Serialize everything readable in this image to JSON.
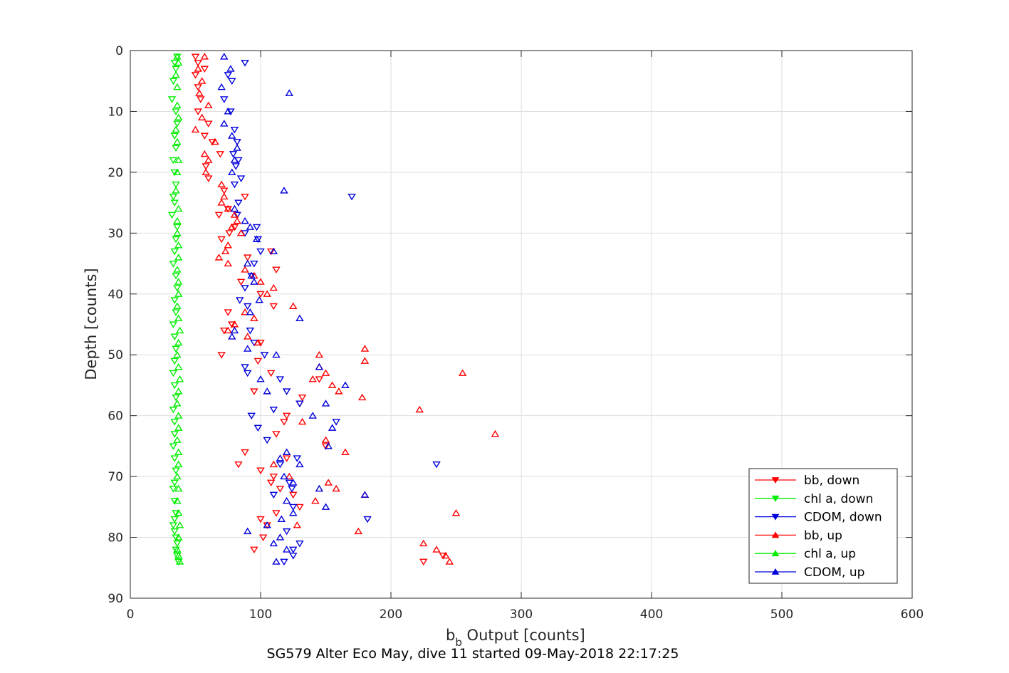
{
  "chart_data": {
    "type": "scatter",
    "caption": "SG579 Alter Eco May, dive 11 started 09-May-2018 22:17:25",
    "xlabel_main": "b",
    "xlabel_sub": "b",
    "xlabel_rest": " Output [counts]",
    "ylabel": "Depth [counts]",
    "xlim": [
      0,
      600
    ],
    "ylim": [
      0,
      90
    ],
    "y_reversed": true,
    "grid": true,
    "legend_placement": "bottom-right",
    "x_ticks": [
      "0",
      "100",
      "200",
      "300",
      "400",
      "500",
      "600"
    ],
    "y_ticks": [
      "0",
      "10",
      "20",
      "30",
      "40",
      "50",
      "60",
      "70",
      "80",
      "90"
    ],
    "series": [
      {
        "name": "bb, down",
        "color": "#ff0000",
        "marker": "triangle-down",
        "x": [
          50,
          52,
          57,
          50,
          52,
          54,
          52,
          60,
          57,
          63,
          69,
          58,
          60,
          72,
          88,
          75,
          68,
          80,
          76,
          70,
          108,
          90,
          112,
          85,
          100,
          110,
          75,
          78,
          72,
          100,
          70,
          98,
          108,
          145,
          95,
          132,
          130,
          120,
          118,
          112,
          150,
          88,
          120,
          83,
          100,
          110,
          108,
          115,
          125,
          130,
          112,
          100,
          105,
          102,
          95,
          240,
          225
        ],
        "y": [
          1,
          2,
          3,
          4,
          6,
          8,
          10,
          12,
          14,
          15,
          17,
          19,
          21,
          23,
          24,
          26,
          27,
          29,
          30,
          31,
          33,
          34,
          36,
          38,
          40,
          42,
          43,
          45,
          46,
          48,
          50,
          51,
          53,
          54,
          56,
          57,
          58,
          60,
          61,
          63,
          65,
          66,
          67,
          68,
          69,
          70,
          71,
          72,
          73,
          75,
          76,
          77,
          78,
          80,
          82,
          83,
          84
        ]
      },
      {
        "name": "chl a, down",
        "color": "#00ee00",
        "marker": "triangle-down",
        "x": [
          36,
          34,
          35,
          33,
          32,
          35,
          36,
          34,
          35,
          33,
          34,
          35,
          33,
          34,
          32,
          36,
          35,
          34,
          33,
          35,
          36,
          34,
          35,
          33,
          34,
          35,
          34,
          33,
          34,
          35,
          33,
          34,
          34,
          33,
          34,
          35,
          34,
          33,
          34,
          35,
          34,
          33,
          34,
          35,
          36,
          35,
          36,
          37
        ],
        "y": [
          1,
          2,
          3,
          5,
          8,
          10,
          12,
          14,
          16,
          18,
          20,
          22,
          24,
          25,
          27,
          29,
          31,
          33,
          35,
          37,
          39,
          41,
          43,
          45,
          47,
          49,
          51,
          53,
          55,
          57,
          59,
          61,
          63,
          65,
          67,
          69,
          71,
          72,
          74,
          76,
          77,
          78,
          79,
          80,
          81,
          82,
          83,
          84
        ]
      },
      {
        "name": "CDOM, down",
        "color": "#0000dd",
        "marker": "triangle-down",
        "x": [
          88,
          75,
          78,
          72,
          77,
          80,
          82,
          79,
          83,
          81,
          85,
          80,
          170,
          83,
          82,
          97,
          88,
          98,
          100,
          95,
          93,
          88,
          84,
          90,
          92,
          95,
          103,
          88,
          90,
          115,
          120,
          130,
          110,
          158,
          93,
          98,
          105,
          128,
          115,
          122,
          235,
          124,
          110,
          125,
          182,
          120,
          130,
          125,
          125,
          118
        ],
        "y": [
          2,
          4,
          5,
          8,
          10,
          13,
          15,
          17,
          18,
          19,
          21,
          22,
          24,
          25,
          27,
          29,
          30,
          31,
          33,
          35,
          37,
          39,
          41,
          42,
          46,
          48,
          50,
          52,
          53,
          54,
          56,
          58,
          59,
          61,
          60,
          62,
          64,
          67,
          68,
          71,
          68,
          72,
          73,
          75,
          77,
          79,
          81,
          82,
          83,
          84
        ]
      },
      {
        "name": "bb, up",
        "color": "#ff0000",
        "marker": "triangle-up",
        "x": [
          57,
          52,
          55,
          53,
          60,
          55,
          50,
          65,
          57,
          60,
          58,
          70,
          72,
          70,
          75,
          80,
          82,
          78,
          85,
          75,
          73,
          68,
          75,
          88,
          95,
          100,
          110,
          105,
          125,
          88,
          95,
          80,
          75,
          90,
          98,
          180,
          145,
          180,
          145,
          150,
          255,
          140,
          155,
          160,
          178,
          222,
          132,
          280,
          150,
          165,
          110,
          122,
          152,
          158,
          180,
          142,
          250,
          128,
          175,
          225,
          235,
          242,
          245
        ],
        "y": [
          1,
          3,
          5,
          7,
          9,
          11,
          13,
          15,
          17,
          18,
          20,
          22,
          24,
          25,
          26,
          27,
          28,
          29,
          30,
          32,
          33,
          34,
          35,
          36,
          37,
          38,
          39,
          40,
          42,
          43,
          44,
          45,
          46,
          47,
          48,
          49,
          50,
          51,
          52,
          53,
          53,
          54,
          55,
          56,
          57,
          59,
          61,
          63,
          64,
          66,
          68,
          70,
          71,
          72,
          73,
          74,
          76,
          78,
          79,
          81,
          82,
          83,
          84
        ]
      },
      {
        "name": "chl a, up",
        "color": "#00ee00",
        "marker": "triangle-up",
        "x": [
          36,
          37,
          35,
          36,
          36,
          37,
          35,
          36,
          37,
          36,
          35,
          37,
          36,
          36,
          37,
          37,
          36,
          37,
          37,
          36,
          37,
          38,
          37,
          36,
          37,
          38,
          37,
          36,
          37,
          37,
          36,
          37,
          37,
          36,
          37,
          36,
          37,
          38,
          37,
          36,
          37,
          38
        ],
        "y": [
          1,
          2,
          4,
          6,
          9,
          11,
          13,
          15,
          18,
          20,
          23,
          26,
          28,
          30,
          32,
          34,
          36,
          38,
          40,
          42,
          44,
          46,
          48,
          50,
          52,
          54,
          56,
          58,
          60,
          62,
          64,
          66,
          68,
          70,
          72,
          74,
          76,
          78,
          80,
          82,
          83,
          84
        ]
      },
      {
        "name": "CDOM, up",
        "color": "#0000dd",
        "marker": "triangle-up",
        "x": [
          72,
          77,
          70,
          122,
          75,
          72,
          78,
          82,
          80,
          78,
          118,
          80,
          88,
          92,
          97,
          110,
          90,
          93,
          95,
          99,
          92,
          130,
          80,
          78,
          90,
          112,
          145,
          100,
          165,
          105,
          150,
          140,
          155,
          152,
          120,
          115,
          130,
          118,
          125,
          145,
          180,
          150,
          120,
          125,
          116,
          105,
          90,
          115,
          110,
          120,
          112
        ],
        "y": [
          1,
          3,
          6,
          7,
          10,
          12,
          14,
          16,
          18,
          20,
          23,
          26,
          28,
          29,
          31,
          33,
          35,
          37,
          38,
          41,
          43,
          44,
          46,
          47,
          49,
          50,
          52,
          54,
          55,
          56,
          58,
          60,
          62,
          65,
          66,
          67,
          68,
          70,
          71,
          72,
          73,
          75,
          74,
          76,
          77,
          78,
          79,
          80,
          81,
          82,
          84
        ]
      }
    ]
  }
}
